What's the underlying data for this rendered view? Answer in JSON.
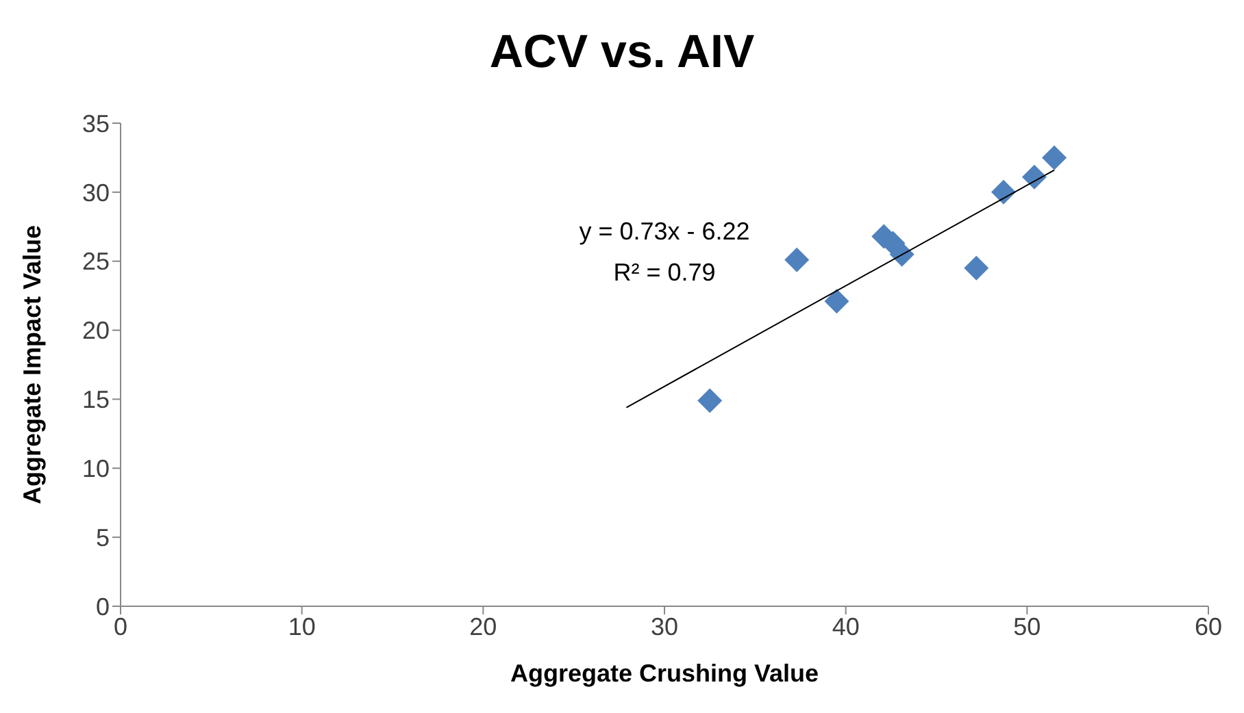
{
  "chart_data": {
    "type": "scatter",
    "title": "ACV vs. AIV",
    "xlabel": "Aggregate Crushing Value",
    "ylabel": "Aggregate Impact Value",
    "series": [
      {
        "color": "#4f81bd",
        "marker": "diamond",
        "x": [
          32.5,
          37.3,
          39.5,
          42.1,
          42.6,
          43.1,
          47.2,
          48.7,
          50.4,
          51.5
        ],
        "values": [
          14.9,
          25.1,
          22.1,
          26.8,
          26.3,
          25.5,
          24.5,
          30.0,
          31.1,
          32.5
        ]
      },
      {
        "type": "line",
        "color": "#000000",
        "x": [
          27.9,
          51.5
        ],
        "values": [
          14.4,
          31.6
        ]
      }
    ],
    "annotations": [
      "y = 0.73x - 6.22",
      "R² = 0.79"
    ],
    "xlim": [
      0,
      60
    ],
    "xticks": [
      0,
      10,
      20,
      30,
      40,
      50,
      60
    ],
    "ylim": [
      0,
      35
    ],
    "yticks": [
      0,
      5,
      10,
      15,
      20,
      25,
      30,
      35
    ],
    "grid": false
  }
}
